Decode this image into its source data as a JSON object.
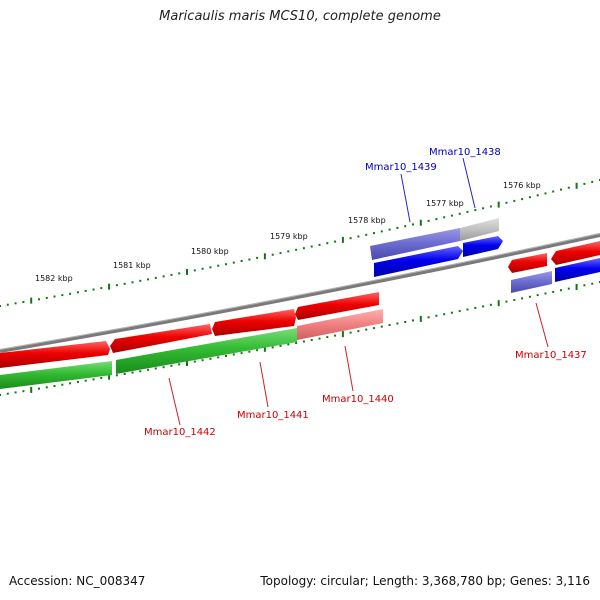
{
  "title": "Maricaulis maris MCS10, complete genome",
  "accession": "Accession: NC_008347",
  "topology": "Topology: circular; Length: 3,368,780 bp; Genes: 3,116",
  "colors": {
    "forward_red": "#ee0000",
    "reverse_blue": "#0000ee",
    "green": "#33bb33",
    "backbone": "#808080",
    "tick_green": "#117711",
    "label_red": "#cc0000",
    "label_blue": "#0000bb"
  },
  "ticks": {
    "outer": [
      "1582 kbp",
      "1581 kbp",
      "1580 kbp",
      "1579 kbp",
      "1578 kbp",
      "1577 kbp",
      "1576 kbp"
    ]
  },
  "genes": [
    {
      "id": "Mmar10_1437",
      "color": "label_red"
    },
    {
      "id": "Mmar10_1438",
      "color": "label_blue"
    },
    {
      "id": "Mmar10_1439",
      "color": "label_blue"
    },
    {
      "id": "Mmar10_1440",
      "color": "label_red"
    },
    {
      "id": "Mmar10_1441",
      "color": "label_red"
    },
    {
      "id": "Mmar10_1442",
      "color": "label_red"
    }
  ]
}
